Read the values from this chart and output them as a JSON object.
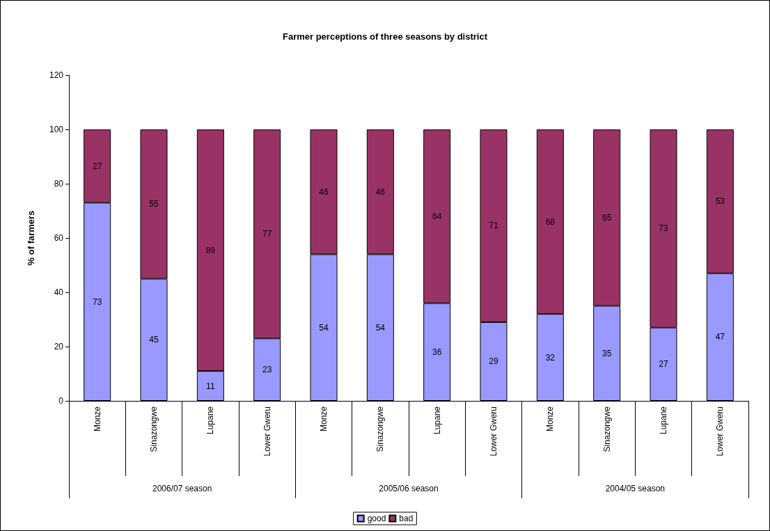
{
  "chart_data": {
    "type": "bar",
    "title": "Farmer perceptions of three seasons by district",
    "ylabel": "% of farmers",
    "categories": [
      "Monze",
      "Sinazongwe",
      "Lupane",
      "Lower Gweru",
      "Monze",
      "Sinazongwe",
      "Lupane",
      "Lower Gweru",
      "Monze",
      "Sinazongwe",
      "Lupane",
      "Lower Gweru"
    ],
    "annotations": [
      "2006/07 season",
      "2005/06 season",
      "2004/05 season"
    ],
    "series": [
      {
        "name": "good",
        "color": "#9999ff",
        "values": [
          73,
          45,
          11,
          23,
          54,
          54,
          36,
          29,
          32,
          35,
          27,
          47
        ]
      },
      {
        "name": "bad",
        "color": "#993366",
        "values": [
          27,
          55,
          89,
          77,
          46,
          46,
          64,
          71,
          68,
          65,
          73,
          53
        ]
      }
    ],
    "stacked": true,
    "data_labels": true,
    "ylim": [
      0,
      120
    ],
    "yticks": [
      0,
      20,
      40,
      60,
      80,
      100,
      120
    ],
    "grid": false,
    "legend": "bottom"
  }
}
